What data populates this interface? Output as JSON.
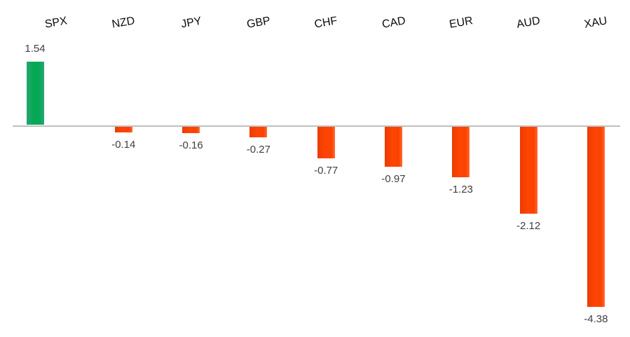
{
  "chart_data": {
    "type": "bar",
    "title": "",
    "xlabel": "",
    "ylabel": "",
    "categories": [
      "SPX",
      "NZD",
      "JPY",
      "GBP",
      "CHF",
      "CAD",
      "EUR",
      "AUD",
      "XAU"
    ],
    "values": [
      1.54,
      -0.14,
      -0.16,
      -0.27,
      -0.77,
      -0.97,
      -1.23,
      -2.12,
      -4.38
    ],
    "value_labels": [
      "1.54",
      "-0.14",
      "-0.16",
      "-0.27",
      "-0.77",
      "-0.97",
      "-1.23",
      "-2.12",
      "-4.38"
    ],
    "colors": {
      "positive_bar": "#06a953",
      "negative_bar": "#fb4201",
      "axis_line": "#bfbfbf",
      "value_label_text": "#404040",
      "category_label_text": "#0d0d0d",
      "background": "#ffffff"
    },
    "layout": {
      "grid": false,
      "legend": false,
      "zero_line": true,
      "category_labels_position": "top",
      "category_label_rotation_deg": -10,
      "value_labels_visible": true
    }
  }
}
